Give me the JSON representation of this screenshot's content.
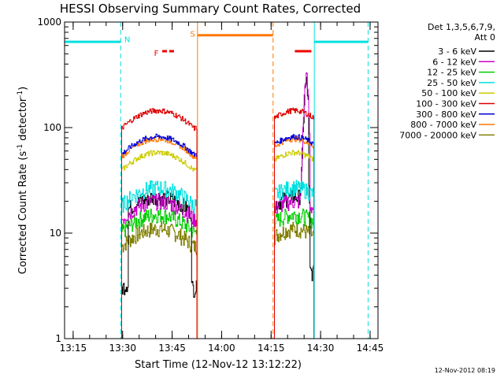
{
  "chart_data": {
    "type": "line",
    "title": "HESSI Observing Summary Count Rates, Corrected",
    "xlabel": "Start Time (12-Nov-12 13:12:22)",
    "ylabel": "Corrected Count Rate (s⁻¹ detector⁻¹)",
    "ylabel_parts": [
      "Corrected Count Rate (s",
      "-1",
      " detector",
      "-1",
      ")"
    ],
    "yscale": "log",
    "ylim": [
      1,
      1000
    ],
    "xlim_minutes": [
      0,
      95
    ],
    "x_ticks": [
      {
        "label": "13:15",
        "minute": 2.6
      },
      {
        "label": "13:30",
        "minute": 17.6
      },
      {
        "label": "13:45",
        "minute": 32.6
      },
      {
        "label": "14:00",
        "minute": 47.6
      },
      {
        "label": "14:15",
        "minute": 62.6
      },
      {
        "label": "14:30",
        "minute": 77.6
      },
      {
        "label": "14:45",
        "minute": 92.6
      }
    ],
    "y_ticks": [
      {
        "label": "1",
        "value": 1
      },
      {
        "label": "10",
        "value": 10
      },
      {
        "label": "100",
        "value": 100
      },
      {
        "label": "1000",
        "value": 1000
      }
    ],
    "legend_title": [
      "Det 1,3,5,6,7,9,",
      "Att 0"
    ],
    "series": [
      {
        "name": "3 - 6 keV",
        "color": "#000000",
        "level": 22
      },
      {
        "name": "6 - 12 keV",
        "color": "#cc00cc",
        "level": 20
      },
      {
        "name": "12 - 25 keV",
        "color": "#00cc00",
        "level": 15
      },
      {
        "name": "25 - 50 keV",
        "color": "#00e0e0",
        "level": 27
      },
      {
        "name": "50 - 100 keV",
        "color": "#cccc00",
        "level": 58
      },
      {
        "name": "100 - 300 keV",
        "color": "#dd0000",
        "level": 145
      },
      {
        "name": "300 - 800 keV",
        "color": "#0000dd",
        "level": 82
      },
      {
        "name": "800 - 7000 keV",
        "color": "#ff7700",
        "level": 78
      },
      {
        "name": "7000 - 20000 keV",
        "color": "#7f7f00",
        "level": 11
      }
    ],
    "intervals": [
      {
        "label": "N",
        "color": "#00e0e0",
        "start": 0,
        "end": 17,
        "level": 650
      },
      {
        "label": "N",
        "color": "#00e0e0",
        "start": 75.7,
        "end": 92,
        "level": 650
      },
      {
        "label": "S",
        "color": "#ff7700",
        "start": 40.3,
        "end": 63.2,
        "level": 750
      },
      {
        "label": "F",
        "color": "#ee0000",
        "start": 29.6,
        "end": 33.8,
        "level": 530
      },
      {
        "label": "F",
        "color": "#ee0000",
        "start": 69.8,
        "end": 74.8,
        "level": 530
      }
    ],
    "solid_markers_minutes": [
      40.3,
      75.7
    ],
    "dashed_markers_minutes": [
      17.0,
      63.2,
      92.0
    ],
    "grid": false
  },
  "footer": {
    "timestamp": "12-Nov-2012 08:19"
  }
}
